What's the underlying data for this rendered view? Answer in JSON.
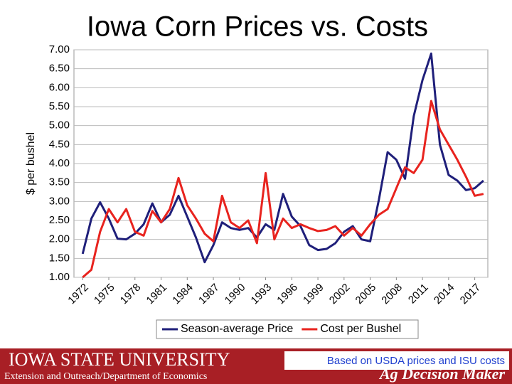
{
  "chart_data": {
    "type": "line",
    "title": "Iowa Corn Prices vs. Costs",
    "y_label": "$ per bushel",
    "x": [
      1972,
      1973,
      1974,
      1975,
      1976,
      1977,
      1978,
      1979,
      1980,
      1981,
      1982,
      1983,
      1984,
      1985,
      1986,
      1987,
      1988,
      1989,
      1990,
      1991,
      1992,
      1993,
      1994,
      1995,
      1996,
      1997,
      1998,
      1999,
      2000,
      2001,
      2002,
      2003,
      2004,
      2005,
      2006,
      2007,
      2008,
      2009,
      2010,
      2011,
      2012,
      2013,
      2014,
      2015,
      2016,
      2017,
      2018
    ],
    "series": [
      {
        "name": "Season-average Price",
        "color": "#1f1f7a",
        "values": [
          1.62,
          2.55,
          2.98,
          2.55,
          2.02,
          2.0,
          2.15,
          2.4,
          2.95,
          2.45,
          2.65,
          3.15,
          2.6,
          2.05,
          1.4,
          1.85,
          2.45,
          2.3,
          2.25,
          2.3,
          2.05,
          2.4,
          2.25,
          3.2,
          2.6,
          2.35,
          1.85,
          1.72,
          1.75,
          1.9,
          2.2,
          2.35,
          2.0,
          1.95,
          3.05,
          4.3,
          4.1,
          3.6,
          5.25,
          6.2,
          6.9,
          4.5,
          3.7,
          3.55,
          3.3,
          3.35,
          3.55
        ]
      },
      {
        "name": "Cost per Bushel",
        "color": "#e8231e",
        "values": [
          1.0,
          1.2,
          2.2,
          2.8,
          2.45,
          2.8,
          2.2,
          2.1,
          2.75,
          2.45,
          2.8,
          3.62,
          2.9,
          2.55,
          2.15,
          1.95,
          3.15,
          2.45,
          2.3,
          2.5,
          1.9,
          3.75,
          2.0,
          2.55,
          2.3,
          2.4,
          2.3,
          2.22,
          2.25,
          2.35,
          2.1,
          2.3,
          2.1,
          2.4,
          2.65,
          2.8,
          3.35,
          3.9,
          3.75,
          4.1,
          5.65,
          4.9,
          4.5,
          4.1,
          3.65,
          3.15,
          3.2
        ]
      }
    ],
    "xlim": [
      1971,
      2018.5
    ],
    "xticks": [
      1972,
      1975,
      1978,
      1981,
      1984,
      1987,
      1990,
      1993,
      1996,
      1999,
      2002,
      2005,
      2008,
      2011,
      2014,
      2017
    ],
    "ylim": [
      1,
      7
    ],
    "yticks": [
      {
        "value": 1,
        "label": "1.00"
      },
      {
        "value": 1.5,
        "label": "1.50"
      },
      {
        "value": 2,
        "label": "2.00"
      },
      {
        "value": 2.5,
        "label": "2.50"
      },
      {
        "value": 3,
        "label": "3.00"
      },
      {
        "value": 3.5,
        "label": "3.50"
      },
      {
        "value": 4,
        "label": "4.00"
      },
      {
        "value": 4.5,
        "label": "4.50"
      },
      {
        "value": 5,
        "label": "5.00"
      },
      {
        "value": 5.5,
        "label": "5.50"
      },
      {
        "value": 6,
        "label": "6.00"
      },
      {
        "value": 6.5,
        "label": "6.50"
      },
      {
        "value": 7,
        "label": "7.00"
      }
    ],
    "grid": true,
    "legend": "bottom"
  },
  "footer": {
    "university": "Iowa State University",
    "department": "Extension and Outreach/Department of Economics",
    "brand": "Ag Decision Maker",
    "source": "Based on USDA prices and ISU costs"
  }
}
